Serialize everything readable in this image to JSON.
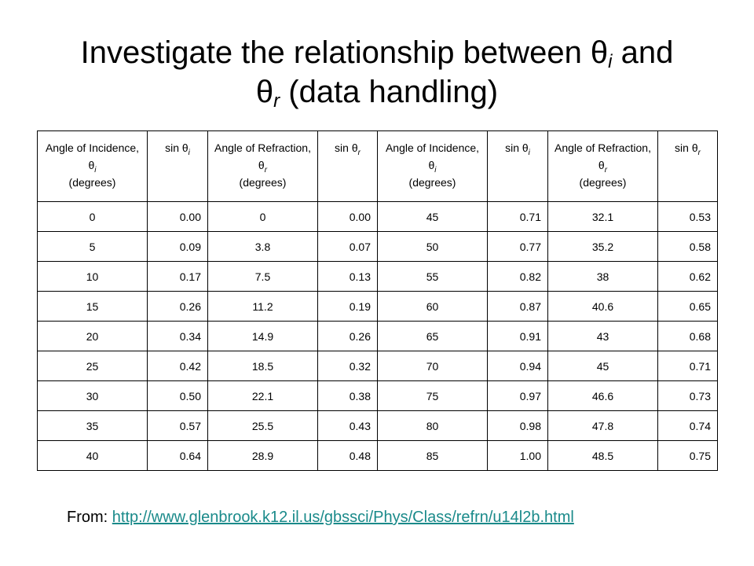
{
  "title": {
    "line1": "Investigate the relationship between θ",
    "sub1": "i",
    "line1_end": " and",
    "line2": "θ",
    "sub2": "r",
    "line2_end": "  (data handling)"
  },
  "table": {
    "header": [
      {
        "text": "Angle of Incidence, θ",
        "sub": "i",
        "after": "(degrees)"
      },
      {
        "text": "sin θ",
        "sub": "i"
      },
      {
        "text": "Angle of Refraction, θ",
        "sub": "r",
        "after": "(degrees)"
      },
      {
        "text": "sin θ",
        "sub": "r"
      },
      {
        "text": "Angle of Incidence, θ",
        "sub": "i",
        "after": "(degrees)"
      },
      {
        "text": "sin θ",
        "sub": "i"
      },
      {
        "text": "Angle of Refraction, θ",
        "sub": "r",
        "after": "(degrees)"
      },
      {
        "text": "sin θ",
        "sub": "r"
      }
    ],
    "rows": [
      [
        "0",
        "0.00",
        "0",
        "0.00",
        "45",
        "0.71",
        "32.1",
        "0.53"
      ],
      [
        "5",
        "0.09",
        "3.8",
        "0.07",
        "50",
        "0.77",
        "35.2",
        "0.58"
      ],
      [
        "10",
        "0.17",
        "7.5",
        "0.13",
        "55",
        "0.82",
        "38",
        "0.62"
      ],
      [
        "15",
        "0.26",
        "11.2",
        "0.19",
        "60",
        "0.87",
        "40.6",
        "0.65"
      ],
      [
        "20",
        "0.34",
        "14.9",
        "0.26",
        "65",
        "0.91",
        "43",
        "0.68"
      ],
      [
        "25",
        "0.42",
        "18.5",
        "0.32",
        "70",
        "0.94",
        "45",
        "0.71"
      ],
      [
        "30",
        "0.50",
        "22.1",
        "0.38",
        "75",
        "0.97",
        "46.6",
        "0.73"
      ],
      [
        "35",
        "0.57",
        "25.5",
        "0.43",
        "80",
        "0.98",
        "47.8",
        "0.74"
      ],
      [
        "40",
        "0.64",
        "28.9",
        "0.48",
        "85",
        "1.00",
        "48.5",
        "0.75"
      ]
    ]
  },
  "footer": {
    "label": "From: ",
    "link": "http://www.glenbrook.k12.il.us/gbssci/Phys/Class/refrn/u14l2b.html"
  }
}
